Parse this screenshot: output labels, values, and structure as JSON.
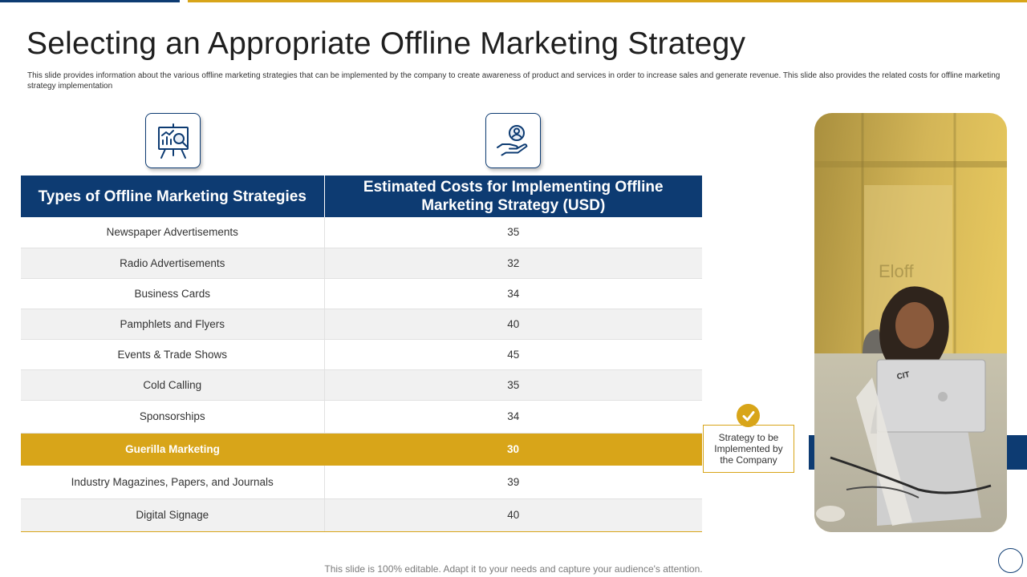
{
  "slide": {
    "title": "Selecting an Appropriate Offline Marketing Strategy",
    "subtitle": "This slide provides information about the various offline marketing strategies that can be implemented  by the company to create awareness of product and services in order to increase sales and generate revenue. This slide also provides the related costs for offline marketing strategy implementation",
    "footer": "This slide is 100% editable. Adapt it to your needs and capture your audience's attention."
  },
  "icons": {
    "col1": "presentation-analysis-icon",
    "col2": "hand-user-icon",
    "badge": "checkmark-icon"
  },
  "table": {
    "headers": [
      "Types of Offline Marketing Strategies",
      "Estimated Costs for Implementing Offline Marketing Strategy (USD)"
    ],
    "rows": [
      {
        "strategy": "Newspaper  Advertisements",
        "cost": "35"
      },
      {
        "strategy": "Radio Advertisements",
        "cost": "32"
      },
      {
        "strategy": "Business Cards",
        "cost": "34"
      },
      {
        "strategy": "Pamphlets and Flyers",
        "cost": "40"
      },
      {
        "strategy": "Events & Trade Shows",
        "cost": "45"
      },
      {
        "strategy": "Cold Calling",
        "cost": "35"
      },
      {
        "strategy": "Sponsorships",
        "cost": "34"
      },
      {
        "strategy": "Guerilla Marketing",
        "cost": "30"
      },
      {
        "strategy": "Industry Magazines, Papers, and Journals",
        "cost": "39"
      },
      {
        "strategy": "Digital Signage",
        "cost": "40"
      }
    ],
    "highlighted_row": "Guerilla Marketing"
  },
  "callout": {
    "text": "Strategy to be Implemented by the Company"
  },
  "photo": {
    "laptop_sticker": "CIT"
  },
  "colors": {
    "navy": "#0d3b72",
    "gold": "#d8a519",
    "row_alt": "#f1f1f1"
  }
}
